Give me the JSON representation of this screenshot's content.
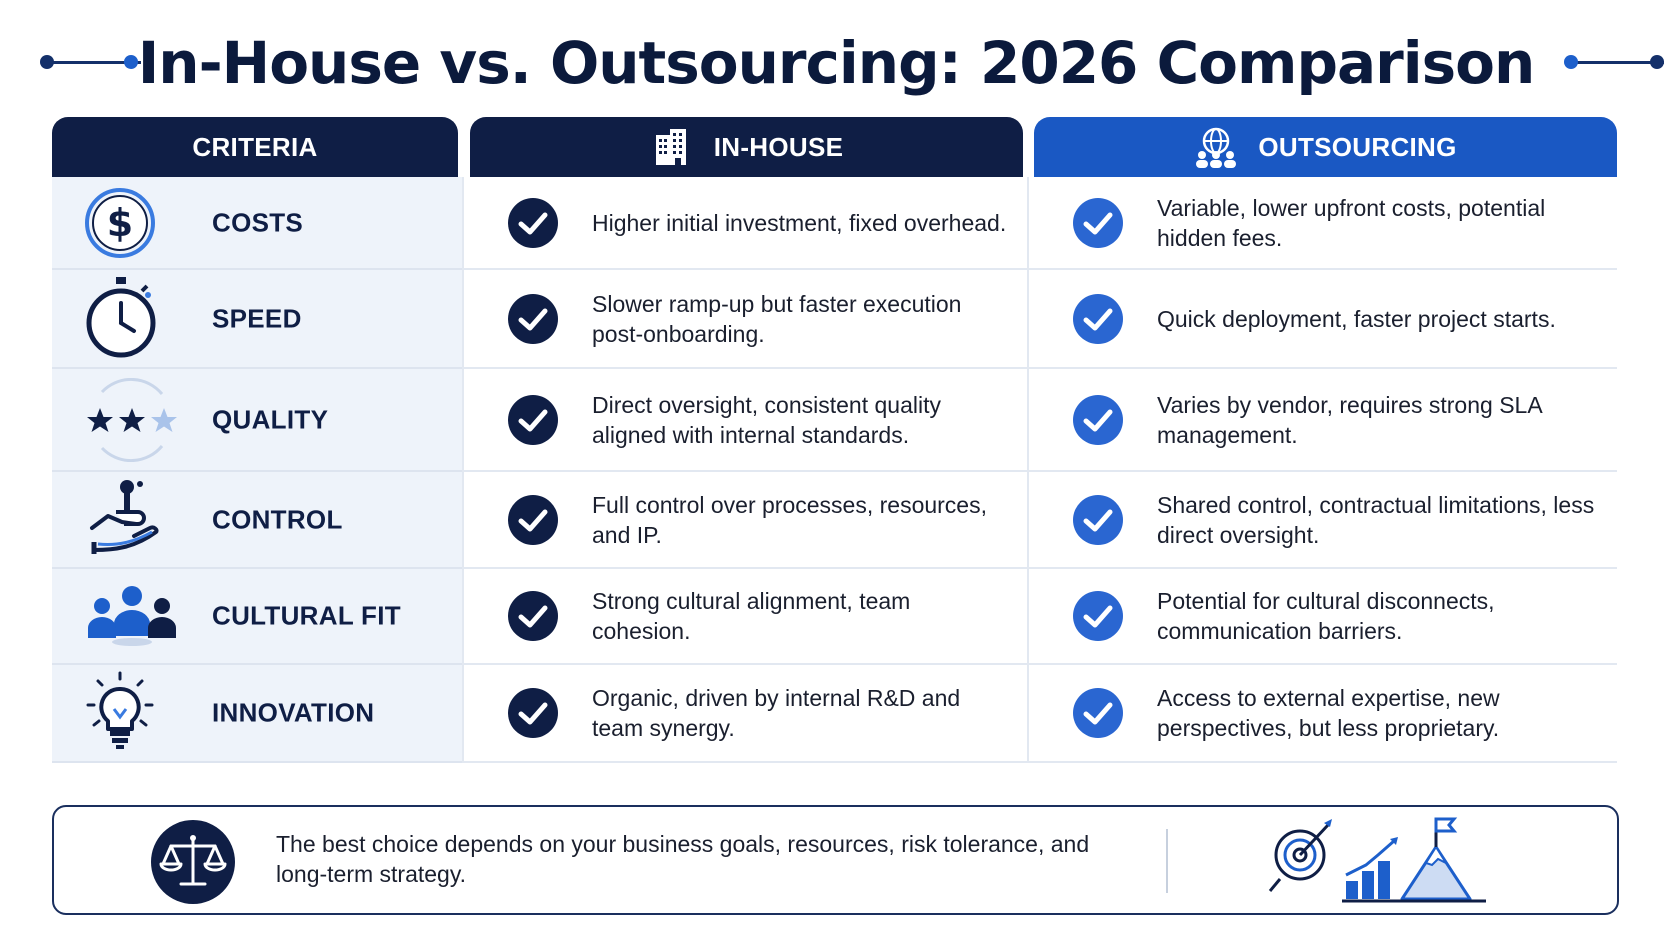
{
  "title": "In-House vs. Outsourcing: 2026 Comparison",
  "headers": {
    "criteria": "CRITERIA",
    "inhouse": "IN-HOUSE",
    "outsourcing": "OUTSOURCING"
  },
  "rows": [
    {
      "criterion": "COSTS",
      "icon": "dollar-icon",
      "inhouse": "Higher initial investment, fixed overhead.",
      "outsourcing": "Variable, lower upfront costs, potential hidden fees."
    },
    {
      "criterion": "SPEED",
      "icon": "stopwatch-icon",
      "inhouse": "Slower ramp-up but faster execution post-onboarding.",
      "outsourcing": "Quick deployment, faster project starts."
    },
    {
      "criterion": "QUALITY",
      "icon": "stars-icon",
      "inhouse": "Direct oversight, consistent quality aligned with internal standards.",
      "outsourcing": "Varies by vendor, requires strong SLA management."
    },
    {
      "criterion": "CONTROL",
      "icon": "hand-joystick-icon",
      "inhouse": "Full control over processes, resources, and IP.",
      "outsourcing": "Shared control, contractual limitations, less direct oversight."
    },
    {
      "criterion": "CULTURAL FIT",
      "icon": "team-icon",
      "inhouse": "Strong cultural alignment, team cohesion.",
      "outsourcing": "Potential for cultural disconnects, communication barriers."
    },
    {
      "criterion": "INNOVATION",
      "icon": "lightbulb-icon",
      "inhouse": "Organic, driven by internal R&D and team synergy.",
      "outsourcing": "Access to external expertise, new perspectives, but less proprietary."
    }
  ],
  "footer": {
    "text": "The best choice depends on your business goals, resources, risk tolerance, and long-term strategy.",
    "left_icon": "scale-icon",
    "right_icon": "target-growth-summit-icon"
  },
  "colors": {
    "navy": "#0f1e45",
    "blue": "#1a58c3",
    "check_navy": "#0f1e45",
    "check_blue": "#2a66d1",
    "criteria_bg": "#eef3fa"
  }
}
